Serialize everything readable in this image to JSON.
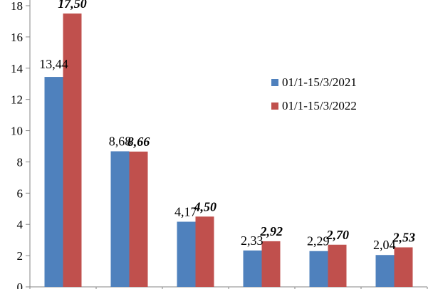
{
  "chart_data": {
    "type": "bar",
    "title": "",
    "xlabel": "",
    "ylabel": "",
    "categories": [
      "",
      "",
      "",
      "",
      "",
      ""
    ],
    "ylim": [
      0,
      18
    ],
    "yticks": [
      "0",
      "2",
      "4",
      "6",
      "8",
      "10",
      "12",
      "14",
      "16",
      "18"
    ],
    "grid": false,
    "legend_position": "right",
    "series": [
      {
        "name": "01/1-15/3/2021",
        "color": "#4f81bd",
        "values": [
          13.44,
          8.68,
          4.17,
          2.33,
          2.29,
          2.04
        ],
        "labels": [
          "13,44",
          "8,68",
          "4,17",
          "2,33",
          "2,29",
          "2,04"
        ],
        "label_style": "normal"
      },
      {
        "name": "01/1-15/3/2022",
        "color": "#c0504d",
        "values": [
          17.5,
          8.66,
          4.5,
          2.92,
          2.7,
          2.53
        ],
        "labels": [
          "17,50",
          "8,66",
          "4,50",
          "2,92",
          "2,70",
          "2,53"
        ],
        "label_style": "bold-italic"
      }
    ]
  }
}
